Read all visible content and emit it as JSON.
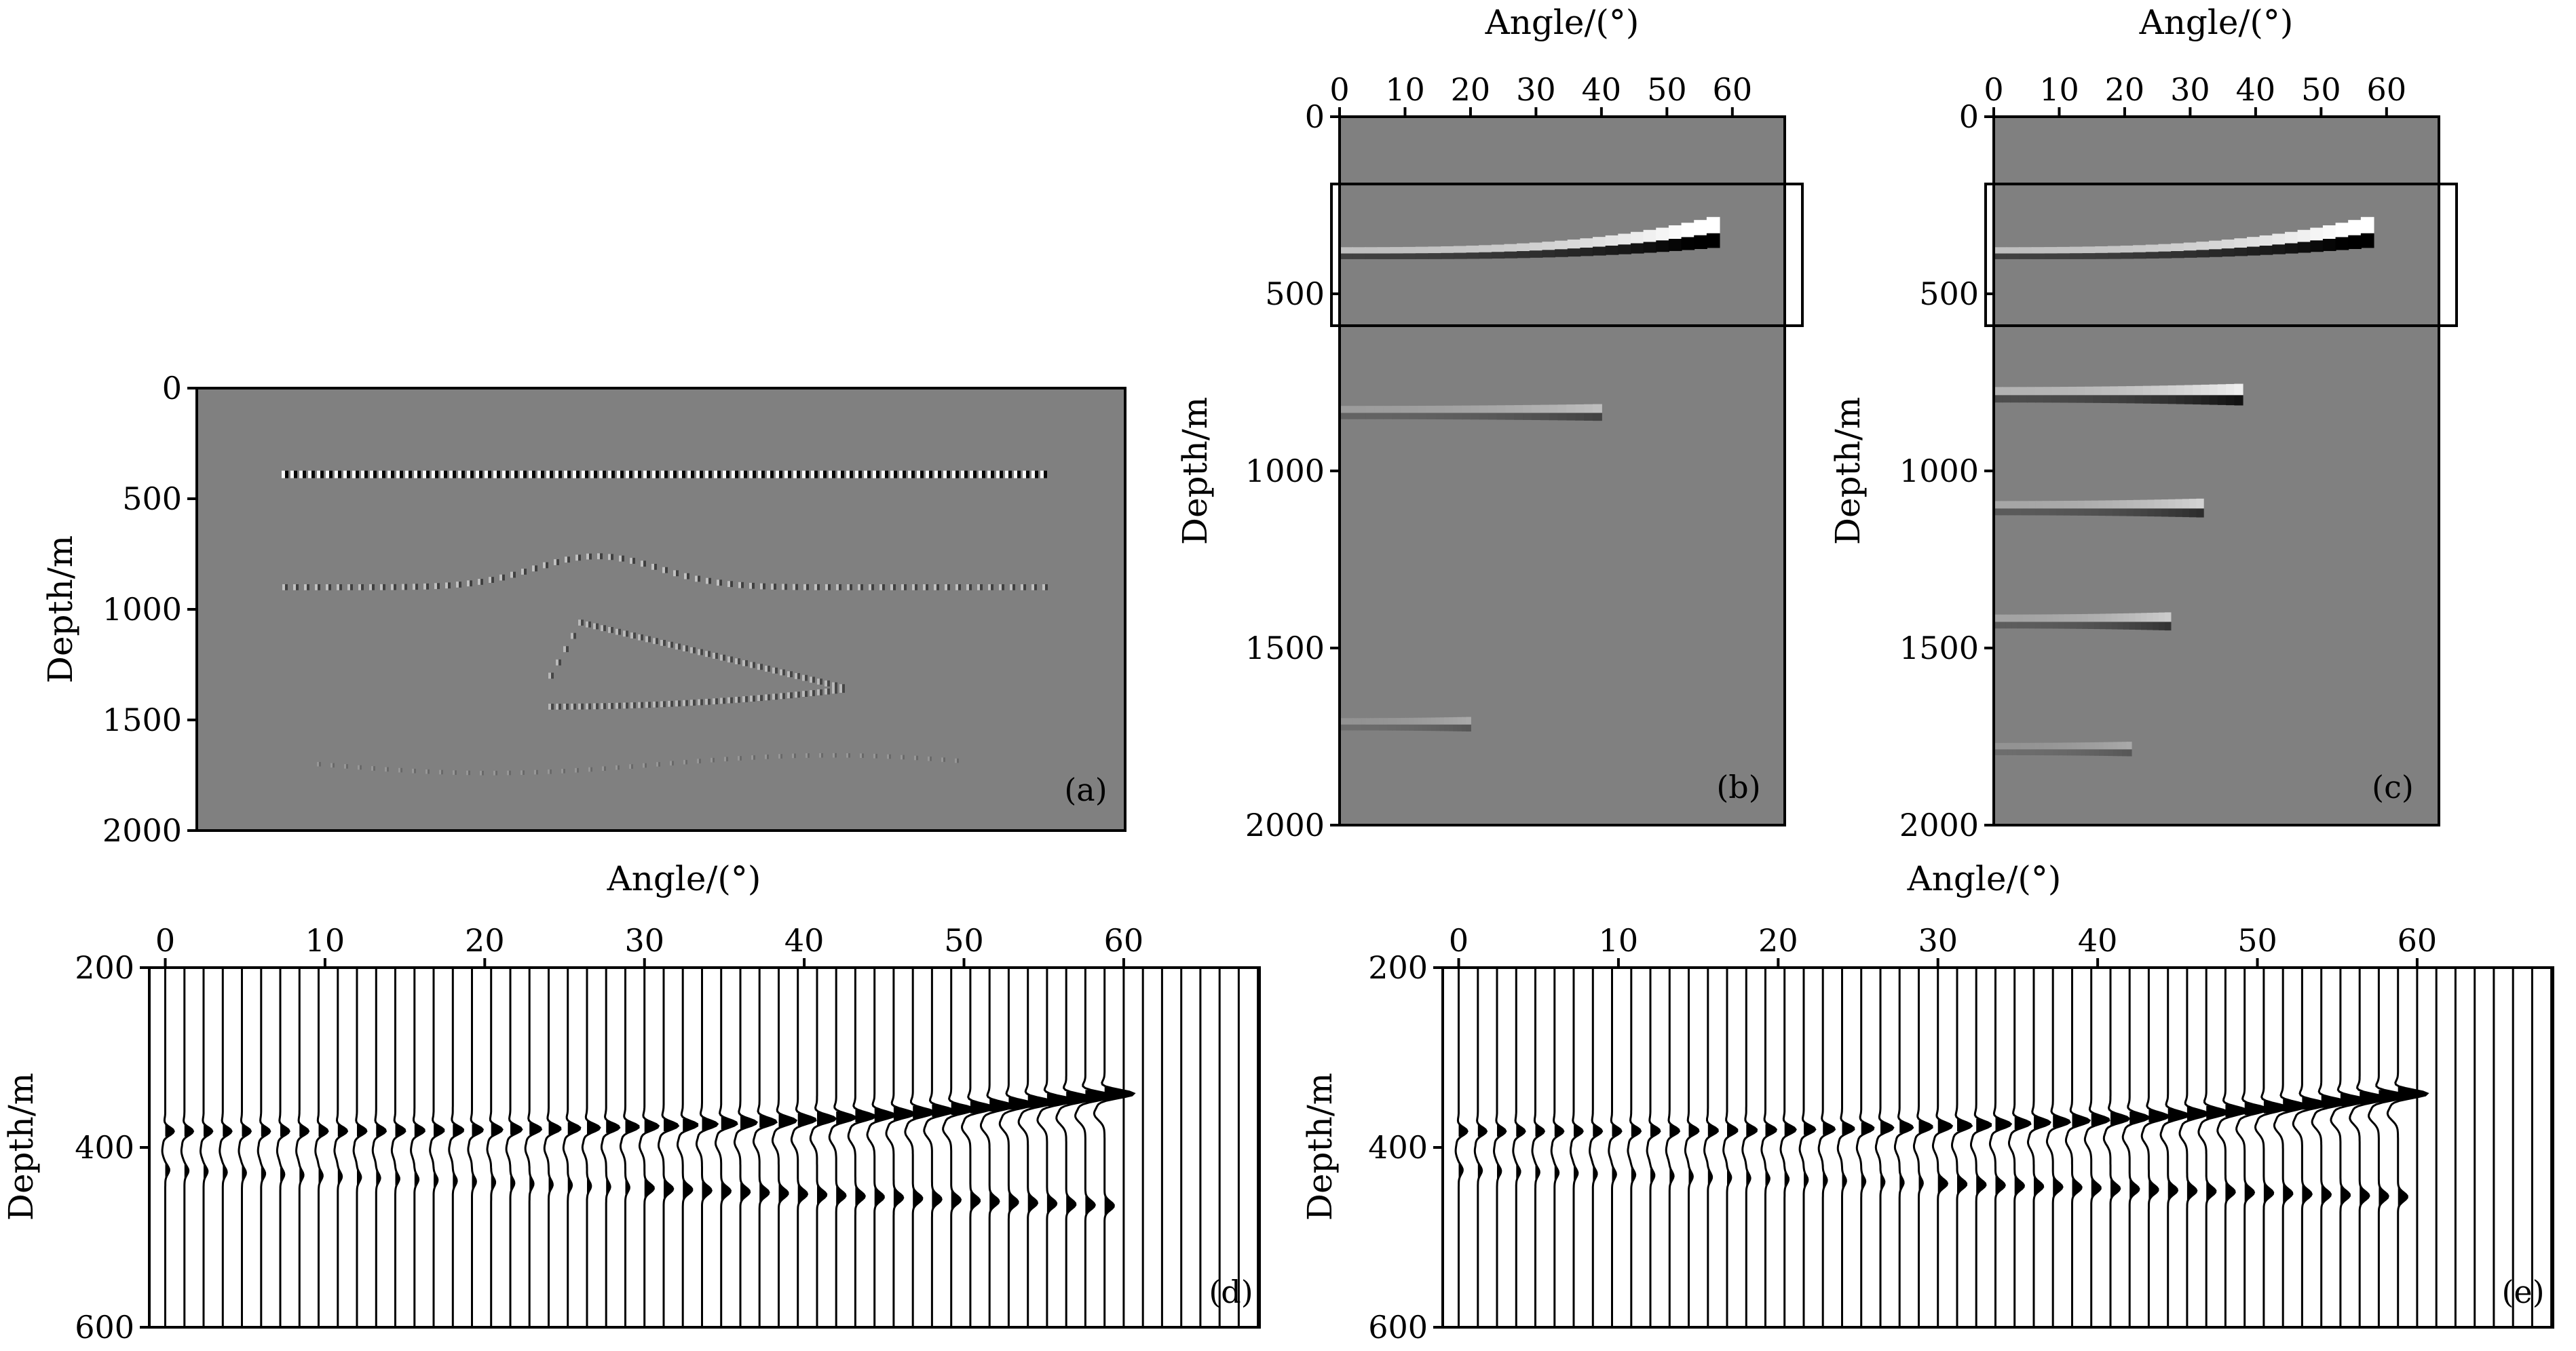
{
  "panels": {
    "a": {
      "label": "(a)",
      "ylabel": "Depth/m"
    },
    "b": {
      "label": "(b)",
      "xlabel": "Angle/(°)",
      "ylabel": "Depth/m"
    },
    "c": {
      "label": "(c)",
      "xlabel": "Angle/(°)",
      "ylabel": "Depth/m"
    },
    "d": {
      "label": "(d)",
      "xlabel": "Angle/(°)",
      "ylabel": "Depth/m"
    },
    "e": {
      "label": "(e)",
      "xlabel": "Angle/(°)",
      "ylabel": "Depth/m"
    }
  },
  "colors": {
    "background": "#808080",
    "event_light": "#ffffff",
    "event_dark": "#000000"
  },
  "chart_data": [
    {
      "id": "a",
      "type": "heatmap",
      "ylabel": "Depth/m",
      "ylim": [
        0,
        2000
      ],
      "yticks": [
        0,
        500,
        1000,
        1500,
        2000
      ],
      "label": "(a)",
      "note_events": [
        {
          "kind": "flat",
          "depth": 390,
          "strength": 1.0
        },
        {
          "kind": "anticline",
          "depth": 900,
          "crest_depth": 760,
          "strength": 0.5
        },
        {
          "kind": "lens",
          "top_depth": 1060,
          "base_depth": 1440,
          "strength": 0.45
        },
        {
          "kind": "flat",
          "depth": 1700,
          "strength": 0.2
        }
      ]
    },
    {
      "id": "b",
      "type": "heatmap",
      "xlabel": "Angle/(°)",
      "ylabel": "Depth/m",
      "xlim": [
        0,
        68
      ],
      "xticks": [
        0,
        10,
        20,
        30,
        40,
        50,
        60
      ],
      "ylim": [
        0,
        2000
      ],
      "yticks": [
        0,
        500,
        1000,
        1500,
        2000
      ],
      "label": "(b)",
      "events": [
        {
          "depth": 390,
          "max_angle": 58,
          "strength": 1.0
        },
        {
          "depth": 840,
          "max_angle": 40,
          "strength": 0.45
        },
        {
          "depth": 1720,
          "max_angle": 20,
          "strength": 0.3
        }
      ],
      "highlight_box": {
        "depth_range": [
          190,
          590
        ]
      }
    },
    {
      "id": "c",
      "type": "heatmap",
      "xlabel": "Angle/(°)",
      "ylabel": "Depth/m",
      "xlim": [
        0,
        68
      ],
      "xticks": [
        0,
        10,
        20,
        30,
        40,
        50,
        60
      ],
      "ylim": [
        0,
        2000
      ],
      "yticks": [
        0,
        500,
        1000,
        1500,
        2000
      ],
      "label": "(c)",
      "events": [
        {
          "depth": 390,
          "max_angle": 58,
          "strength": 1.0
        },
        {
          "depth": 790,
          "max_angle": 38,
          "strength": 0.8
        },
        {
          "depth": 1110,
          "max_angle": 32,
          "strength": 0.6
        },
        {
          "depth": 1430,
          "max_angle": 27,
          "strength": 0.55
        },
        {
          "depth": 1790,
          "max_angle": 21,
          "strength": 0.3
        }
      ],
      "highlight_box": {
        "depth_range": [
          190,
          590
        ]
      }
    },
    {
      "id": "d",
      "type": "line",
      "xlabel": "Angle/(°)",
      "ylabel": "Depth/m",
      "xlim": [
        -1,
        68.5
      ],
      "xticks": [
        0,
        10,
        20,
        30,
        40,
        50,
        60
      ],
      "ylim": [
        200,
        600
      ],
      "yticks": [
        200,
        400,
        600
      ],
      "label": "(d)",
      "traces": {
        "start_angle": 0,
        "step": 1.2,
        "count": 58,
        "max_data_angle": 59
      },
      "event": {
        "depth_start": 382,
        "depth_end": 340,
        "secondary_depth_start": 425,
        "secondary_depth_end": 465
      }
    },
    {
      "id": "e",
      "type": "line",
      "xlabel": "Angle/(°)",
      "ylabel": "Depth/m",
      "xlim": [
        -1,
        68.5
      ],
      "xticks": [
        0,
        10,
        20,
        30,
        40,
        50,
        60
      ],
      "ylim": [
        200,
        600
      ],
      "yticks": [
        200,
        400,
        600
      ],
      "label": "(e)",
      "traces": {
        "start_angle": 0,
        "step": 1.2,
        "count": 58,
        "max_data_angle": 59
      },
      "event": {
        "depth_start": 382,
        "depth_end": 340,
        "secondary_depth_start": 425,
        "secondary_depth_end": 455
      }
    }
  ]
}
